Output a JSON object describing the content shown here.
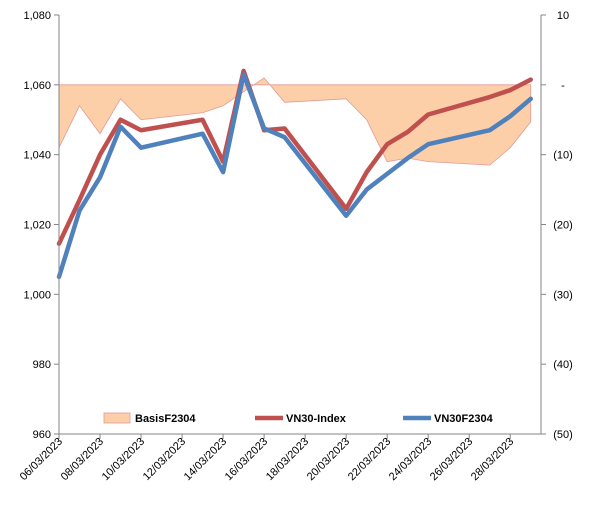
{
  "chart_data": {
    "type": "line",
    "x": [
      "06/03/2023",
      "07/03/2023",
      "08/03/2023",
      "09/03/2023",
      "10/03/2023",
      "13/03/2023",
      "14/03/2023",
      "15/03/2023",
      "16/03/2023",
      "17/03/2023",
      "20/03/2023",
      "21/03/2023",
      "22/03/2023",
      "23/03/2023",
      "24/03/2023",
      "27/03/2023",
      "28/03/2023",
      "29/03/2023"
    ],
    "x_plot": [
      "06/03/2023",
      "07/03/2023",
      "08/03/2023",
      "09/03/2023",
      "10/03/2023",
      "13/03/2023",
      "14/03/2023",
      "15/03/2023",
      "16/03/2023",
      "17/03/2023",
      "20/03/2023",
      "21/03/2023",
      "22/03/2023",
      "23/03/2023",
      "24/03/2023",
      "27/03/2023",
      "28/03/2023",
      "29/03/2023"
    ],
    "x_tick_labels": [
      "06/03/2023",
      "08/03/2023",
      "10/03/2023",
      "12/03/2023",
      "14/03/2023",
      "16/03/2023",
      "18/03/2023",
      "20/03/2023",
      "22/03/2023",
      "24/03/2023",
      "26/03/2023",
      "28/03/2023"
    ],
    "y_left": {
      "ylim": [
        960,
        1080
      ],
      "ticks": [
        "960",
        "980",
        "1,000",
        "1,020",
        "1,040",
        "1,060",
        "1,080"
      ]
    },
    "y_right": {
      "ylim": [
        -50,
        10
      ],
      "ticks": [
        "(50)",
        "(40)",
        "(30)",
        "(20)",
        "(10)",
        "-",
        "10"
      ]
    },
    "series": [
      {
        "name": "BasisF2304",
        "axis": "right",
        "type": "area",
        "color": "#FCCFA8",
        "values": [
          -9,
          -3,
          -7,
          -2,
          -5,
          -4,
          -3,
          -1,
          1,
          -2.5,
          -2,
          -5,
          -11,
          -10.5,
          -11,
          -11.5,
          -9,
          -5.3
        ]
      },
      {
        "name": "VN30-Index",
        "axis": "left",
        "type": "line",
        "color": "#C0504D",
        "values": [
          1014.5,
          1027,
          1040,
          1050,
          1047,
          1050,
          1038,
          1064,
          1047,
          1047.5,
          1024.5,
          1035,
          1043,
          1046.5,
          1051.5,
          1056.5,
          1058.5,
          1061.5
        ]
      },
      {
        "name": "VN30F2304",
        "axis": "left",
        "type": "line",
        "color": "#4F81BD",
        "values": [
          1005,
          1024,
          1033.5,
          1048,
          1042,
          1046,
          1035,
          1063,
          1047.5,
          1045,
          1022.5,
          1030,
          1034.5,
          1039,
          1043,
          1047,
          1051,
          1056
        ]
      }
    ],
    "legend": [
      "BasisF2304",
      "VN30-Index",
      "VN30F2304"
    ],
    "legend_position": "bottom-inside",
    "grid": false
  }
}
